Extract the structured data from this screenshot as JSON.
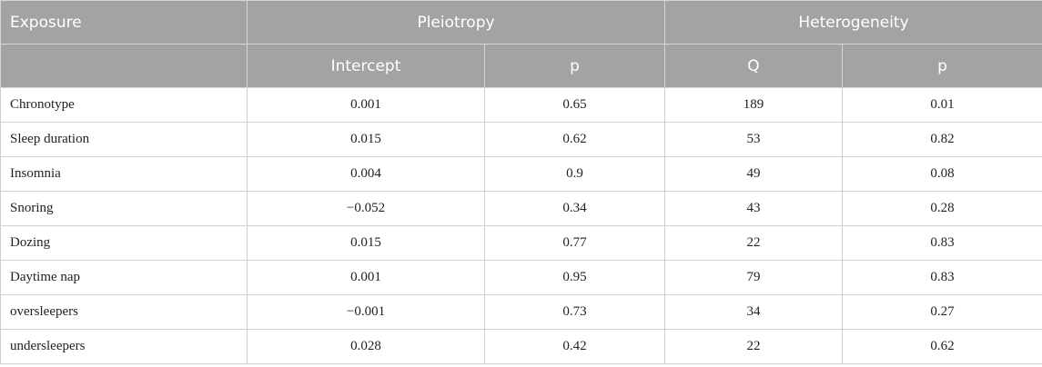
{
  "table": {
    "header": {
      "exposure": "Exposure",
      "groups": [
        "Pleiotropy",
        "Heterogeneity"
      ],
      "columns": [
        "Intercept",
        "p",
        "Q",
        "p"
      ]
    },
    "rows": [
      [
        "Chronotype",
        "0.001",
        "0.65",
        "189",
        "0.01"
      ],
      [
        "Sleep duration",
        "0.015",
        "0.62",
        "53",
        "0.82"
      ],
      [
        "Insomnia",
        "0.004",
        "0.9",
        "49",
        "0.08"
      ],
      [
        "Snoring",
        "−0.052",
        "0.34",
        "43",
        "0.28"
      ],
      [
        "Dozing",
        "0.015",
        "0.77",
        "22",
        "0.83"
      ],
      [
        "Daytime nap",
        "0.001",
        "0.95",
        "79",
        "0.83"
      ],
      [
        "oversleepers",
        "−0.001",
        "0.73",
        "34",
        "0.27"
      ],
      [
        "undersleepers",
        "0.028",
        "0.42",
        "22",
        "0.62"
      ]
    ]
  }
}
